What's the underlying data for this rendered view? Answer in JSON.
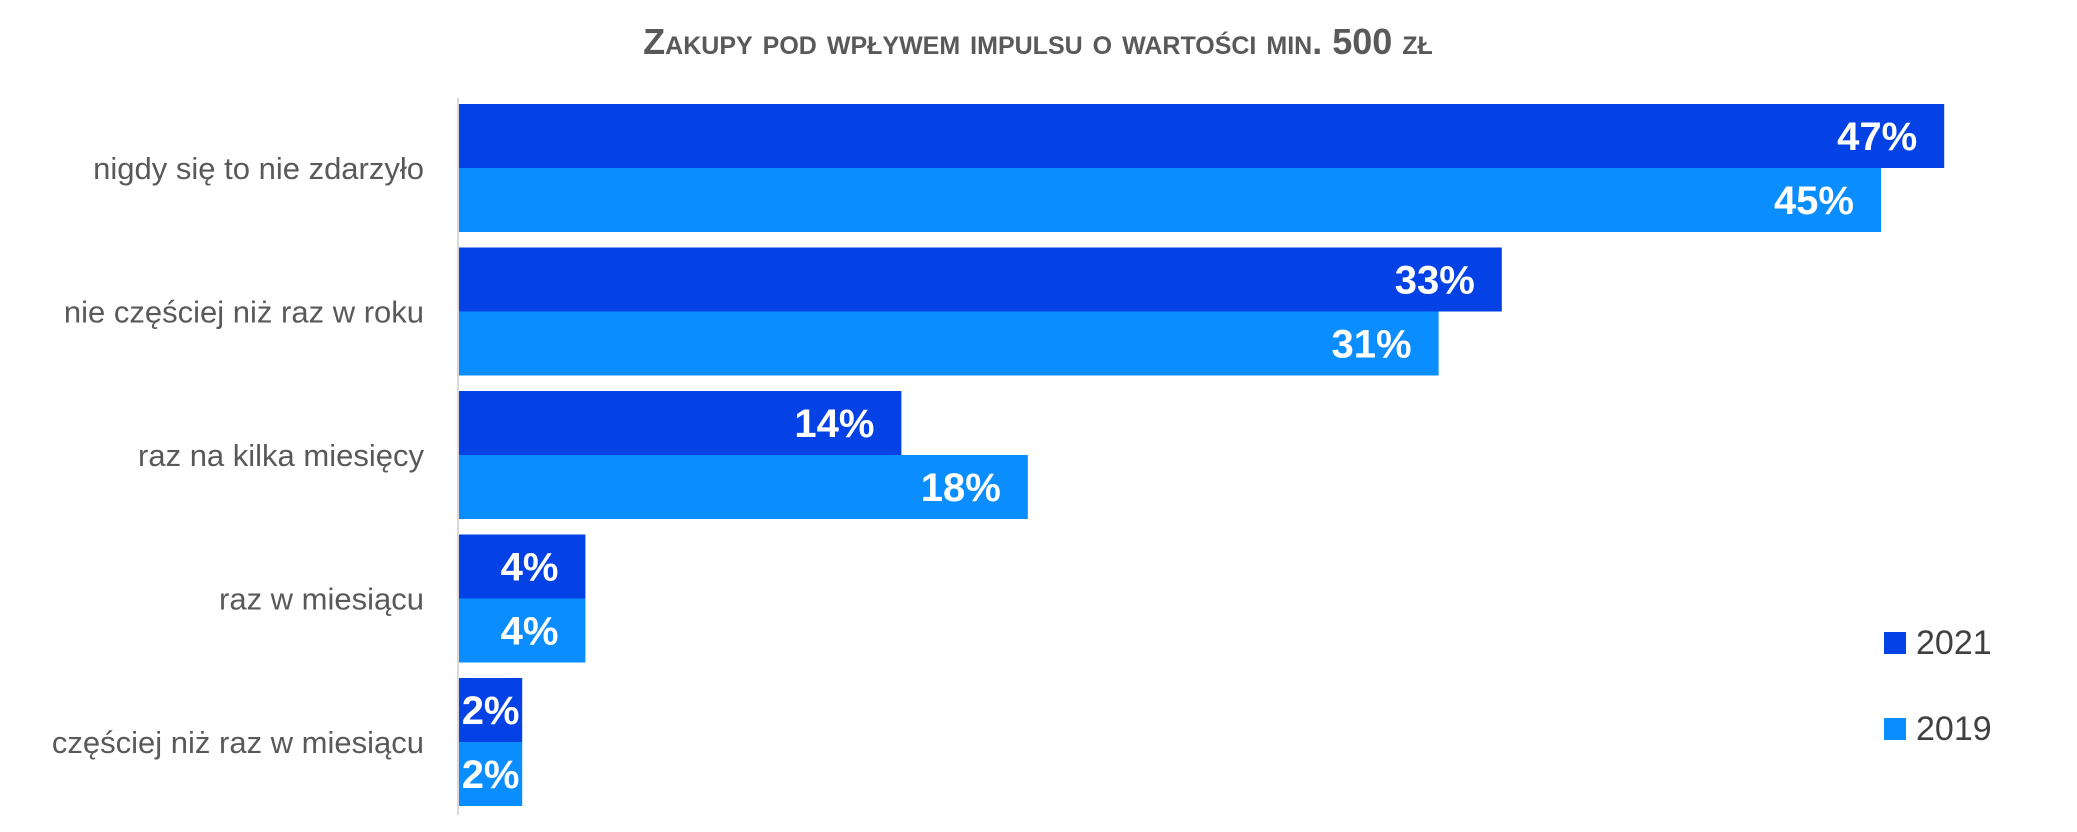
{
  "chart_data": {
    "type": "bar",
    "orientation": "horizontal",
    "title": "Zakupy pod wpływem impulsu o wartości min. 500 zł",
    "categories": [
      "nigdy się to nie zdarzyło",
      "nie częściej niż raz w roku",
      "raz na kilka miesięcy",
      "raz w miesiącu",
      "częściej niż raz w miesiącu"
    ],
    "series": [
      {
        "name": "2021",
        "color": "#0542E5",
        "values": [
          47,
          33,
          14,
          4,
          2
        ],
        "labels": [
          "47%",
          "33%",
          "14%",
          "4%",
          "2%"
        ]
      },
      {
        "name": "2019",
        "color": "#0A8DFF",
        "values": [
          45,
          31,
          18,
          4,
          2
        ],
        "labels": [
          "45%",
          "31%",
          "18%",
          "4%",
          "2%"
        ]
      }
    ],
    "xlim": [
      0,
      50
    ],
    "grid": false,
    "legend_position": "right"
  }
}
